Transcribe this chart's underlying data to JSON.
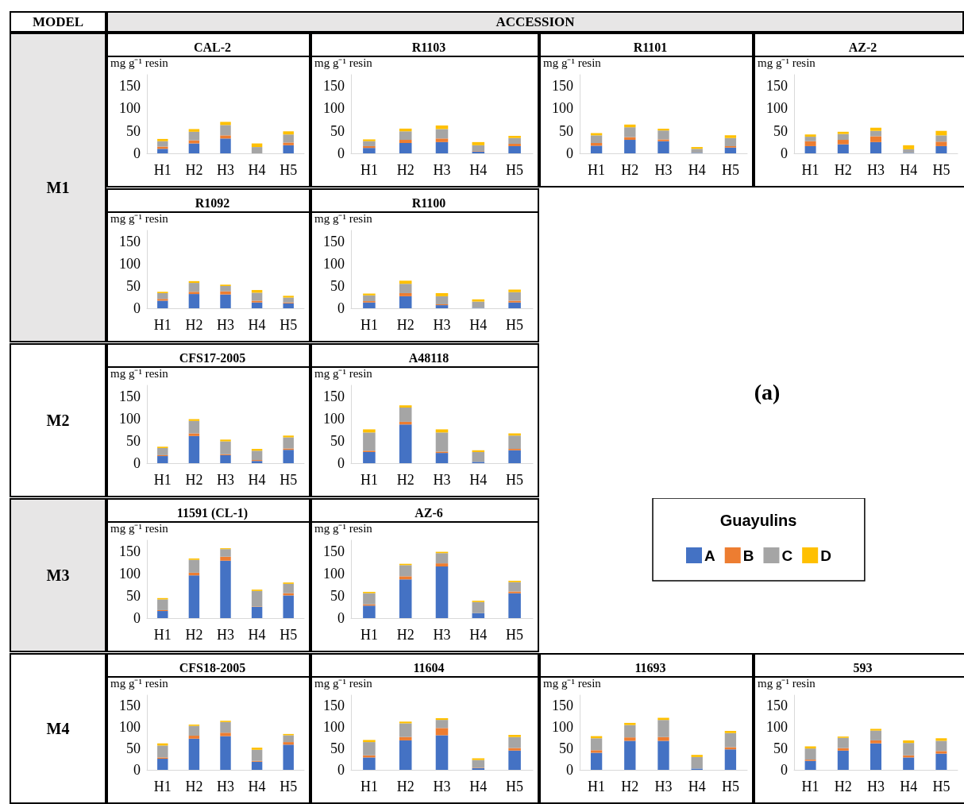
{
  "chart_data": [
    {
      "type": "bar",
      "title": "CAL-2",
      "ylabel": "mg g⁻¹ resin",
      "categories": [
        "H1",
        "H2",
        "H3",
        "H4",
        "H5"
      ],
      "stacked": true,
      "ylim": [
        0,
        175
      ],
      "yticks": [
        0,
        50,
        100,
        150
      ],
      "annotations": [
        "MODEL",
        "ACCESSION",
        "M1"
      ],
      "series": [
        {
          "color": "#4472c4",
          "values": [
            10,
            22,
            33,
            0,
            18
          ]
        },
        {
          "color": "#ed7d31",
          "values": [
            5,
            7,
            7,
            0,
            6
          ]
        },
        {
          "color": "#a5a5a5",
          "values": [
            12,
            19,
            23,
            14,
            18
          ]
        },
        {
          "color": "#ffc000",
          "values": [
            5,
            6,
            7,
            8,
            7
          ]
        }
      ]
    },
    {
      "type": "bar",
      "title": "R1103",
      "ylabel": "mg g⁻¹ resin",
      "categories": [
        "H1",
        "H2",
        "H3",
        "H4",
        "H5"
      ],
      "stacked": true,
      "ylim": [
        0,
        175
      ],
      "yticks": [
        0,
        50,
        100,
        150
      ],
      "series": [
        {
          "color": "#4472c4",
          "values": [
            12,
            23,
            25,
            4,
            16
          ]
        },
        {
          "color": "#ed7d31",
          "values": [
            4,
            7,
            8,
            1,
            5
          ]
        },
        {
          "color": "#a5a5a5",
          "values": [
            11,
            19,
            21,
            13,
            13
          ]
        },
        {
          "color": "#ffc000",
          "values": [
            4,
            6,
            8,
            7,
            5
          ]
        }
      ]
    },
    {
      "type": "bar",
      "title": "R1101",
      "ylabel": "mg g⁻¹ resin",
      "categories": [
        "H1",
        "H2",
        "H3",
        "H4",
        "H5"
      ],
      "stacked": true,
      "ylim": [
        0,
        175
      ],
      "yticks": [
        0,
        50,
        100,
        150
      ],
      "series": [
        {
          "color": "#4472c4",
          "values": [
            17,
            30,
            27,
            1,
            13
          ]
        },
        {
          "color": "#ed7d31",
          "values": [
            6,
            6,
            4,
            0,
            3
          ]
        },
        {
          "color": "#a5a5a5",
          "values": [
            17,
            22,
            20,
            9,
            18
          ]
        },
        {
          "color": "#ffc000",
          "values": [
            5,
            6,
            4,
            4,
            6
          ]
        }
      ]
    },
    {
      "type": "bar",
      "title": "AZ-2",
      "ylabel": "mg g⁻¹ resin",
      "categories": [
        "H1",
        "H2",
        "H3",
        "H4",
        "H5"
      ],
      "stacked": true,
      "ylim": [
        0,
        175
      ],
      "yticks": [
        0,
        50,
        100,
        150
      ],
      "series": [
        {
          "color": "#4472c4",
          "values": [
            16,
            20,
            25,
            1,
            16
          ]
        },
        {
          "color": "#ed7d31",
          "values": [
            11,
            10,
            13,
            0,
            10
          ]
        },
        {
          "color": "#a5a5a5",
          "values": [
            10,
            13,
            12,
            8,
            14
          ]
        },
        {
          "color": "#ffc000",
          "values": [
            5,
            5,
            7,
            9,
            10
          ]
        }
      ]
    },
    {
      "type": "bar",
      "title": "R1092",
      "ylabel": "mg g⁻¹ resin",
      "categories": [
        "H1",
        "H2",
        "H3",
        "H4",
        "H5"
      ],
      "stacked": true,
      "ylim": [
        0,
        175
      ],
      "yticks": [
        0,
        50,
        100,
        150
      ],
      "series": [
        {
          "color": "#4472c4",
          "values": [
            17,
            32,
            31,
            13,
            11
          ]
        },
        {
          "color": "#ed7d31",
          "values": [
            4,
            5,
            7,
            4,
            2
          ]
        },
        {
          "color": "#a5a5a5",
          "values": [
            13,
            20,
            12,
            18,
            11
          ]
        },
        {
          "color": "#ffc000",
          "values": [
            3,
            4,
            3,
            6,
            4
          ]
        }
      ]
    },
    {
      "type": "bar",
      "title": "R1100",
      "ylabel": "mg g⁻¹ resin",
      "categories": [
        "H1",
        "H2",
        "H3",
        "H4",
        "H5"
      ],
      "stacked": true,
      "ylim": [
        0,
        175
      ],
      "yticks": [
        0,
        50,
        100,
        150
      ],
      "series": [
        {
          "color": "#4472c4",
          "values": [
            13,
            27,
            7,
            1,
            13
          ]
        },
        {
          "color": "#ed7d31",
          "values": [
            3,
            7,
            2,
            0,
            4
          ]
        },
        {
          "color": "#a5a5a5",
          "values": [
            13,
            21,
            18,
            14,
            19
          ]
        },
        {
          "color": "#ffc000",
          "values": [
            4,
            7,
            7,
            5,
            6
          ]
        }
      ]
    },
    {
      "type": "bar",
      "title": "CFS17-2005",
      "ylabel": "mg g⁻¹ resin",
      "categories": [
        "H1",
        "H2",
        "H3",
        "H4",
        "H5"
      ],
      "stacked": true,
      "ylim": [
        0,
        175
      ],
      "yticks": [
        0,
        50,
        100,
        150
      ],
      "annotations": [
        "M2"
      ],
      "series": [
        {
          "color": "#4472c4",
          "values": [
            16,
            61,
            18,
            5,
            30
          ]
        },
        {
          "color": "#ed7d31",
          "values": [
            2,
            6,
            2,
            2,
            3
          ]
        },
        {
          "color": "#a5a5a5",
          "values": [
            16,
            28,
            29,
            21,
            25
          ]
        },
        {
          "color": "#ffc000",
          "values": [
            3,
            4,
            4,
            4,
            4
          ]
        }
      ]
    },
    {
      "type": "bar",
      "title": "A48118",
      "ylabel": "mg g⁻¹ resin",
      "categories": [
        "H1",
        "H2",
        "H3",
        "H4",
        "H5"
      ],
      "stacked": true,
      "ylim": [
        0,
        175
      ],
      "yticks": [
        0,
        50,
        100,
        150
      ],
      "series": [
        {
          "color": "#4472c4",
          "values": [
            25,
            87,
            23,
            3,
            29
          ]
        },
        {
          "color": "#ed7d31",
          "values": [
            3,
            6,
            3,
            null,
            3
          ]
        },
        {
          "color": "#a5a5a5",
          "values": [
            41,
            32,
            43,
            22,
            30
          ]
        },
        {
          "color": "#ffc000",
          "values": [
            7,
            5,
            7,
            4,
            5
          ]
        }
      ]
    },
    {
      "type": "bar",
      "title": "11591 (CL-1)",
      "ylabel": "mg g⁻¹ resin",
      "categories": [
        "H1",
        "H2",
        "H3",
        "H4",
        "H5"
      ],
      "stacked": true,
      "ylim": [
        0,
        175
      ],
      "yticks": [
        0,
        50,
        100,
        150
      ],
      "annotations": [
        "M3"
      ],
      "series": [
        {
          "color": "#4472c4",
          "values": [
            16,
            96,
            129,
            25,
            51
          ]
        },
        {
          "color": "#ed7d31",
          "values": [
            2,
            6,
            9,
            1,
            5
          ]
        },
        {
          "color": "#a5a5a5",
          "values": [
            24,
            29,
            17,
            35,
            21
          ]
        },
        {
          "color": "#ffc000",
          "values": [
            3,
            3,
            2,
            3,
            3
          ]
        }
      ]
    },
    {
      "type": "bar",
      "title": "AZ-6",
      "ylabel": "mg g⁻¹ resin",
      "categories": [
        "H1",
        "H2",
        "H3",
        "H4",
        "H5"
      ],
      "stacked": true,
      "ylim": [
        0,
        175
      ],
      "yticks": [
        0,
        50,
        100,
        150
      ],
      "annotations": [
        "(a)"
      ],
      "legend": "right",
      "legend_title": "Guayulins",
      "series": [
        {
          "name": "A",
          "color": "#4472c4",
          "values": [
            28,
            87,
            116,
            11,
            56
          ]
        },
        {
          "name": "B",
          "color": "#ed7d31",
          "values": [
            3,
            7,
            7,
            0,
            4
          ]
        },
        {
          "name": "C",
          "color": "#a5a5a5",
          "values": [
            25,
            25,
            23,
            25,
            21
          ]
        },
        {
          "name": "D",
          "color": "#ffc000",
          "values": [
            3,
            3,
            3,
            3,
            3
          ]
        }
      ]
    },
    {
      "type": "bar",
      "title": "CFS18-2005",
      "ylabel": "mg g⁻¹ resin",
      "categories": [
        "H1",
        "H2",
        "H3",
        "H4",
        "H5"
      ],
      "stacked": true,
      "ylim": [
        0,
        175
      ],
      "yticks": [
        0,
        50,
        100,
        150
      ],
      "annotations": [
        "M4"
      ],
      "series": [
        {
          "color": "#4472c4",
          "values": [
            26,
            73,
            79,
            19,
            59
          ]
        },
        {
          "color": "#ed7d31",
          "values": [
            3,
            7,
            8,
            2,
            6
          ]
        },
        {
          "color": "#a5a5a5",
          "values": [
            28,
            23,
            25,
            26,
            16
          ]
        },
        {
          "color": "#ffc000",
          "values": [
            5,
            3,
            3,
            5,
            3
          ]
        }
      ]
    },
    {
      "type": "bar",
      "title": "11604",
      "ylabel": "mg g⁻¹ resin",
      "categories": [
        "H1",
        "H2",
        "H3",
        "H4",
        "H5"
      ],
      "stacked": true,
      "ylim": [
        0,
        175
      ],
      "yticks": [
        0,
        50,
        100,
        150
      ],
      "series": [
        {
          "color": "#4472c4",
          "values": [
            29,
            69,
            81,
            4,
            45
          ]
        },
        {
          "color": "#ed7d31",
          "values": [
            5,
            8,
            17,
            1,
            6
          ]
        },
        {
          "color": "#a5a5a5",
          "values": [
            31,
            32,
            19,
            18,
            26
          ]
        },
        {
          "color": "#ffc000",
          "values": [
            5,
            4,
            4,
            4,
            5
          ]
        }
      ]
    },
    {
      "type": "bar",
      "title": "11693",
      "ylabel": "mg g⁻¹ resin",
      "categories": [
        "H1",
        "H2",
        "H3",
        "H4",
        "H5"
      ],
      "stacked": true,
      "ylim": [
        0,
        175
      ],
      "yticks": [
        0,
        50,
        100,
        150
      ],
      "series": [
        {
          "color": "#4472c4",
          "values": [
            40,
            68,
            68,
            3,
            48
          ]
        },
        {
          "color": "#ed7d31",
          "values": [
            6,
            8,
            9,
            null,
            5
          ]
        },
        {
          "color": "#a5a5a5",
          "values": [
            28,
            29,
            40,
            27,
            33
          ]
        },
        {
          "color": "#ffc000",
          "values": [
            5,
            5,
            5,
            5,
            5
          ]
        }
      ]
    },
    {
      "type": "bar",
      "title": "593",
      "ylabel": "mg g⁻¹ resin",
      "categories": [
        "H1",
        "H2",
        "H3",
        "H4",
        "H5"
      ],
      "stacked": true,
      "ylim": [
        0,
        175
      ],
      "yticks": [
        0,
        50,
        100,
        150
      ],
      "series": [
        {
          "color": "#4472c4",
          "values": [
            21,
            45,
            62,
            29,
            38
          ]
        },
        {
          "color": "#ed7d31",
          "values": [
            3,
            6,
            7,
            5,
            6
          ]
        },
        {
          "color": "#a5a5a5",
          "values": [
            26,
            24,
            23,
            29,
            24
          ]
        },
        {
          "color": "#ffc000",
          "values": [
            5,
            3,
            4,
            6,
            6
          ]
        }
      ]
    }
  ]
}
